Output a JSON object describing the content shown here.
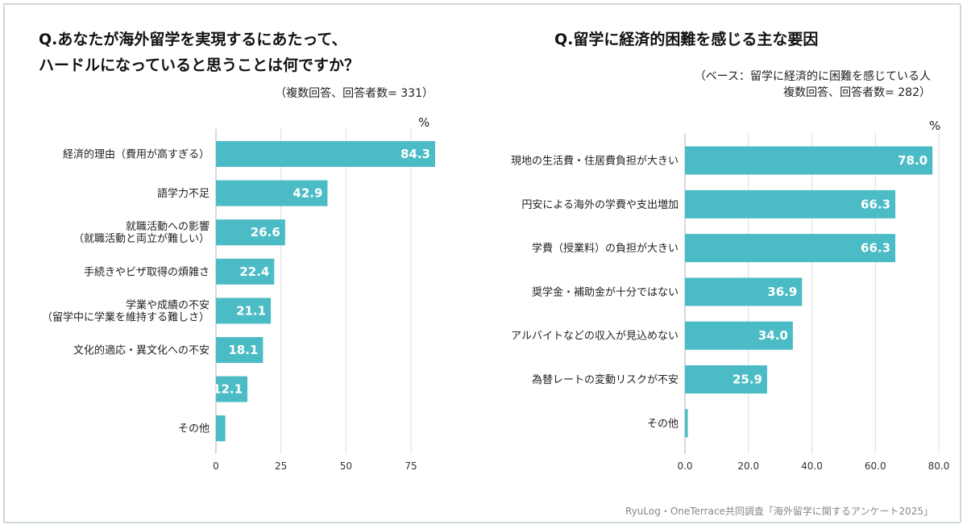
{
  "colors": {
    "bar": "#4bbcc5",
    "grid": "#d9dde3",
    "axis": "#b0b4ba"
  },
  "footer": "RyuLog・OneTerrace共同調査「海外留学に関するアンケート2025」",
  "chart_data": [
    {
      "type": "bar",
      "orientation": "horizontal",
      "title": [
        "Q.あなたが海外留学を実現するにあたって、",
        "ハードルになっていると思うことは何ですか？"
      ],
      "note": [
        "（複数回答、回答者数= 331）"
      ],
      "unit": "%",
      "categories": [
        [
          "経済的理由（費用が高すぎる）"
        ],
        [
          "語学力不足"
        ],
        [
          "就職活動への影響",
          "（就職活動と両立が難しい）"
        ],
        [
          "手続きやビザ取得の煩雑さ"
        ],
        [
          "学業や成績の不安",
          "（留学中に学業を維持する難しさ）"
        ],
        [
          "文化的適応・異文化への不安"
        ],
        [
          ""
        ],
        [
          "その他"
        ]
      ],
      "values": [
        84.3,
        42.9,
        26.6,
        22.4,
        21.1,
        18.1,
        12.1,
        3.6
      ],
      "value_labels": [
        "84.3",
        "42.9",
        "26.6",
        "22.4",
        "21.1",
        "18.1",
        "12.1",
        ""
      ],
      "xlim": [
        0,
        84.3
      ],
      "xticks": [
        0,
        25,
        50,
        75
      ],
      "xtick_labels": [
        "0",
        "25",
        "50",
        "75"
      ],
      "grid": true
    },
    {
      "type": "bar",
      "orientation": "horizontal",
      "title": [
        "Q.留学に経済的困難を感じる主な要因"
      ],
      "note": [
        "（ベース：留学に経済的に困難を感じている人",
        "複数回答、回答者数= 282）"
      ],
      "unit": "%",
      "categories": [
        [
          "現地の生活費・住居費負担が大きい"
        ],
        [
          "円安による海外の学費や支出増加"
        ],
        [
          "学費（授業料）の負担が大きい"
        ],
        [
          "奨学金・補助金が十分ではない"
        ],
        [
          "アルバイトなどの収入が見込めない"
        ],
        [
          "為替レートの変動リスクが不安"
        ],
        [
          "その他"
        ]
      ],
      "values": [
        78.0,
        66.3,
        66.3,
        36.9,
        34.0,
        25.9,
        0.9
      ],
      "value_labels": [
        "78.0",
        "66.3",
        "66.3",
        "36.9",
        "34.0",
        "25.9",
        ""
      ],
      "xlim": [
        0,
        80
      ],
      "xticks": [
        0,
        20,
        40,
        60,
        80
      ],
      "xtick_labels": [
        "0.0",
        "20.0",
        "40.0",
        "60.0",
        "80.0"
      ],
      "grid": true
    }
  ]
}
